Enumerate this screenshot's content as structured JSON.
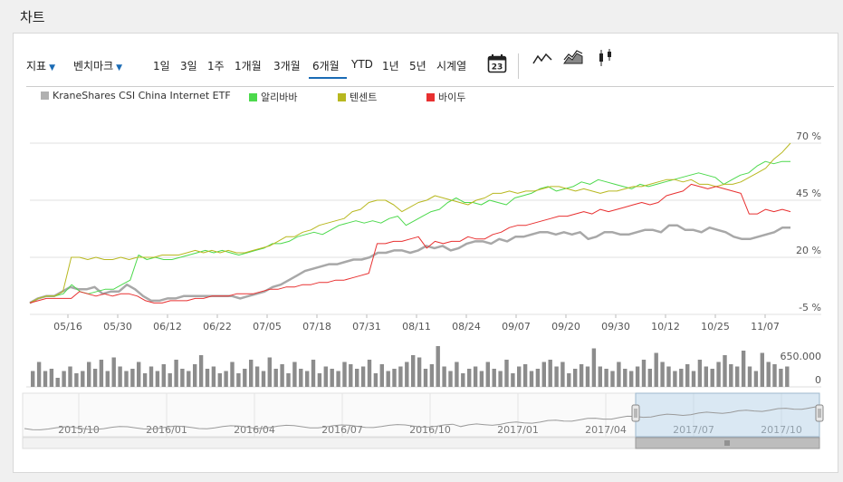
{
  "header": {
    "title": "차트"
  },
  "toolbar": {
    "indicator_label": "지표",
    "benchmark_label": "벤치마크",
    "periods": [
      "1일",
      "3일",
      "1주",
      "1개월",
      "3개월",
      "6개월",
      "YTD",
      "1년",
      "5년",
      "시계열"
    ],
    "active_period": "6개월",
    "calendar_day": "23",
    "chart_types": [
      "line-chart-icon",
      "area-chart-icon",
      "candlestick-chart-icon"
    ]
  },
  "legend": [
    {
      "name": "KraneShares CSI China Internet ETF",
      "color": "#b0b0b0"
    },
    {
      "name": "알리바바",
      "color": "#4cd94c"
    },
    {
      "name": "텐센트",
      "color": "#b8b820"
    },
    {
      "name": "바이두",
      "color": "#e83030"
    }
  ],
  "chart_data": {
    "type": "line",
    "x_labels": [
      "05/16",
      "05/30",
      "06/12",
      "06/22",
      "07/05",
      "07/18",
      "07/31",
      "08/11",
      "08/24",
      "09/07",
      "09/20",
      "09/30",
      "10/12",
      "10/25",
      "11/07"
    ],
    "y_ticks": [
      "70 %",
      "45 %",
      "20 %",
      "-5 %"
    ],
    "y_tick_values": [
      70,
      45,
      20,
      -5
    ],
    "ylim": [
      -5,
      70
    ],
    "series": [
      {
        "name": "KraneShares CSI China Internet ETF",
        "color": "#a8a8a8",
        "width": 2.5,
        "values": [
          0,
          2,
          3,
          3,
          5,
          7,
          6,
          6,
          7,
          4,
          5,
          5,
          8,
          6,
          3,
          1,
          1,
          2,
          2,
          3,
          3,
          3,
          3,
          3,
          3,
          3,
          2,
          3,
          4,
          5,
          7,
          8,
          10,
          12,
          14,
          15,
          16,
          17,
          17,
          18,
          19,
          19,
          20,
          22,
          22,
          23,
          23,
          22,
          23,
          25,
          24,
          25,
          23,
          24,
          26,
          27,
          27,
          26,
          28,
          27,
          29,
          29,
          30,
          31,
          31,
          30,
          31,
          30,
          31,
          28,
          29,
          31,
          31,
          30,
          30,
          31,
          32,
          32,
          31,
          34,
          34,
          32,
          32,
          31,
          33,
          32,
          31,
          29,
          28,
          28,
          29,
          30,
          31,
          33,
          33
        ]
      },
      {
        "name": "알리바바",
        "color": "#4cd94c",
        "width": 1,
        "values": [
          0,
          2,
          3,
          3,
          4,
          8,
          5,
          4,
          5,
          6,
          6,
          8,
          10,
          21,
          19,
          20,
          19,
          19,
          20,
          21,
          22,
          23,
          22,
          23,
          22,
          21,
          22,
          23,
          24,
          26,
          26,
          27,
          29,
          30,
          31,
          30,
          32,
          34,
          35,
          36,
          35,
          36,
          35,
          37,
          38,
          34,
          36,
          38,
          40,
          41,
          44,
          46,
          44,
          44,
          43,
          45,
          44,
          43,
          46,
          47,
          48,
          50,
          51,
          49,
          50,
          51,
          53,
          52,
          54,
          53,
          52,
          51,
          50,
          52,
          51,
          52,
          53,
          54,
          55,
          56,
          57,
          56,
          55,
          52,
          54,
          56,
          57,
          60,
          62,
          61,
          62,
          62
        ]
      },
      {
        "name": "텐센트",
        "color": "#b8b820",
        "width": 1,
        "values": [
          0,
          2,
          3,
          3,
          5,
          20,
          20,
          19,
          20,
          19,
          19,
          20,
          19,
          20,
          20,
          20,
          21,
          21,
          21,
          22,
          23,
          22,
          23,
          22,
          23,
          22,
          22,
          23,
          24,
          25,
          27,
          29,
          29,
          31,
          32,
          34,
          35,
          36,
          37,
          40,
          41,
          44,
          45,
          45,
          43,
          40,
          42,
          44,
          45,
          47,
          46,
          45,
          44,
          43,
          45,
          46,
          48,
          48,
          49,
          48,
          49,
          49,
          50,
          51,
          51,
          50,
          49,
          50,
          49,
          48,
          49,
          49,
          50,
          51,
          51,
          52,
          53,
          54,
          54,
          53,
          54,
          52,
          52,
          51,
          52,
          52,
          53,
          55,
          57,
          59,
          63,
          66,
          70
        ]
      },
      {
        "name": "바이두",
        "color": "#e83030",
        "width": 1,
        "values": [
          0,
          1,
          2,
          2,
          2,
          2,
          5,
          4,
          3,
          4,
          3,
          4,
          4,
          3,
          1,
          0,
          0,
          1,
          1,
          1,
          2,
          2,
          3,
          3,
          3,
          4,
          4,
          4,
          5,
          6,
          6,
          7,
          7,
          8,
          8,
          9,
          9,
          10,
          10,
          11,
          12,
          13,
          26,
          26,
          27,
          27,
          28,
          29,
          24,
          27,
          26,
          27,
          27,
          29,
          28,
          28,
          30,
          31,
          33,
          34,
          34,
          35,
          36,
          37,
          38,
          38,
          39,
          40,
          39,
          41,
          40,
          41,
          42,
          43,
          44,
          43,
          44,
          47,
          48,
          49,
          52,
          51,
          50,
          51,
          50,
          49,
          48,
          39,
          39,
          41,
          40,
          41,
          40
        ]
      }
    ],
    "volume_label_top": "650.000",
    "volume_label_bottom": "0",
    "volume_values": [
      0.35,
      0.55,
      0.35,
      0.4,
      0.2,
      0.35,
      0.45,
      0.3,
      0.35,
      0.55,
      0.4,
      0.6,
      0.35,
      0.65,
      0.45,
      0.35,
      0.4,
      0.55,
      0.3,
      0.45,
      0.35,
      0.5,
      0.3,
      0.6,
      0.4,
      0.35,
      0.5,
      0.7,
      0.4,
      0.45,
      0.3,
      0.35,
      0.55,
      0.3,
      0.4,
      0.6,
      0.45,
      0.35,
      0.65,
      0.4,
      0.5,
      0.3,
      0.55,
      0.4,
      0.35,
      0.6,
      0.3,
      0.45,
      0.4,
      0.35,
      0.55,
      0.5,
      0.4,
      0.45,
      0.6,
      0.3,
      0.5,
      0.35,
      0.4,
      0.45,
      0.55,
      0.7,
      0.65,
      0.4,
      0.5,
      0.9,
      0.45,
      0.35,
      0.55,
      0.3,
      0.4,
      0.45,
      0.35,
      0.55,
      0.4,
      0.35,
      0.6,
      0.3,
      0.45,
      0.5,
      0.35,
      0.4,
      0.55,
      0.6,
      0.45,
      0.55,
      0.3,
      0.4,
      0.5,
      0.45,
      0.85,
      0.45,
      0.4,
      0.35,
      0.55,
      0.4,
      0.35,
      0.45,
      0.6,
      0.4,
      0.75,
      0.55,
      0.45,
      0.35,
      0.4,
      0.5,
      0.35,
      0.6,
      0.45,
      0.4,
      0.55,
      0.7,
      0.5,
      0.45,
      0.8,
      0.45,
      0.35,
      0.75,
      0.55,
      0.5,
      0.4,
      0.45
    ],
    "navigator_labels": [
      "2015/10",
      "2016/01",
      "2016/04",
      "2016/07",
      "2016/10",
      "2017/01",
      "2017/04",
      "2017/07",
      "2017/10"
    ]
  }
}
